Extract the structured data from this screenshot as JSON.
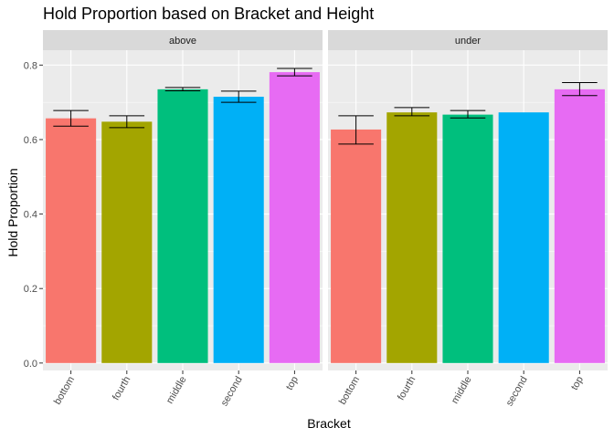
{
  "chart_data": {
    "type": "bar",
    "title": "Hold Proportion based on Bracket and Height",
    "xlabel": "Bracket",
    "ylabel": "Hold Proportion",
    "ylim": [
      -0.02,
      0.84
    ],
    "yticks": [
      0.0,
      0.2,
      0.4,
      0.6,
      0.8
    ],
    "ytick_labels": [
      "0.0",
      "0.2",
      "0.4",
      "0.6",
      "0.8"
    ],
    "categories": [
      "bottom",
      "fourth",
      "middle",
      "second",
      "top"
    ],
    "colors": {
      "bottom": "#F8766D",
      "fourth": "#A3A500",
      "middle": "#00BF7D",
      "second": "#00B0F6",
      "top": "#E76BF3"
    },
    "grid": true,
    "legend": "none",
    "panel_background": "#EBEBEB",
    "strip_background": "#D9D9D9",
    "error_bars": true,
    "facets": [
      {
        "name": "above",
        "values": [
          0.657,
          0.648,
          0.735,
          0.715,
          0.781
        ],
        "err_low": [
          0.636,
          0.632,
          0.731,
          0.7,
          0.771
        ],
        "err_high": [
          0.678,
          0.664,
          0.74,
          0.73,
          0.791
        ]
      },
      {
        "name": "under",
        "values": [
          0.627,
          0.673,
          0.667,
          0.673,
          0.735
        ],
        "err_low": [
          0.588,
          0.664,
          0.658,
          null,
          0.718
        ],
        "err_high": [
          0.664,
          0.686,
          0.678,
          null,
          0.753
        ]
      }
    ]
  }
}
